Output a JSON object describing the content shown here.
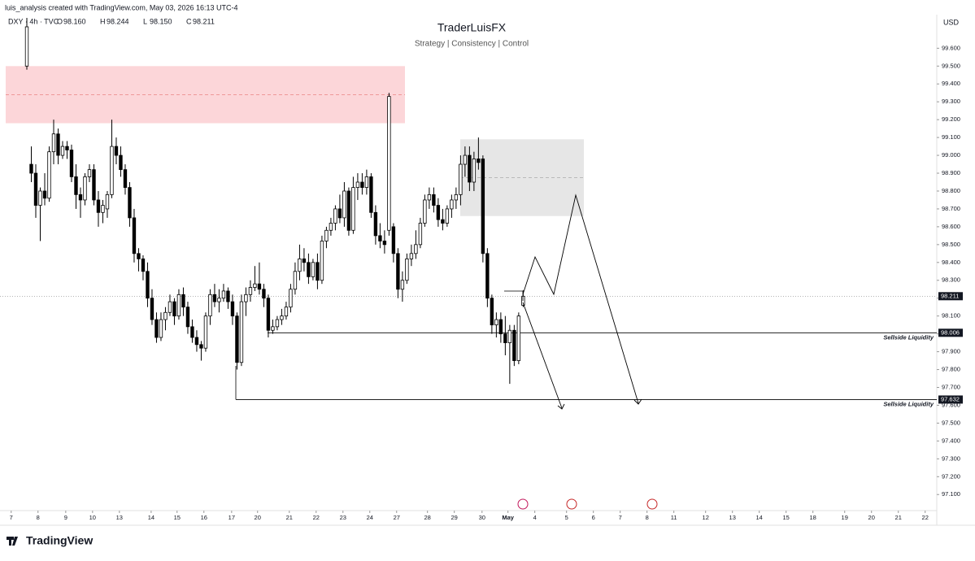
{
  "chart_data": {
    "type": "candlestick",
    "credit": "luis_analysis created with TradingView.com, May 03, 2026 16:13 UTC-4",
    "symbol": "DXY · 4h · TVC",
    "header_ohlc": [
      {
        "key": "O",
        "value": "98.160"
      },
      {
        "key": "H",
        "value": "98.244"
      },
      {
        "key": "L",
        "value": "98.150"
      },
      {
        "key": "C",
        "value": "98.211"
      }
    ],
    "title": "TraderLuisFX",
    "subtitle": "Strategy | Consistency | Control",
    "currency": "USD",
    "brand": "TradingView",
    "ylim": [
      97.01,
      99.77
    ],
    "yticks": [
      {
        "value": 97.1,
        "label": "97.100"
      },
      {
        "value": 97.2,
        "label": "97.200"
      },
      {
        "value": 97.3,
        "label": "97.300"
      },
      {
        "value": 97.4,
        "label": "97.400"
      },
      {
        "value": 97.5,
        "label": "97.500"
      },
      {
        "value": 97.6,
        "label": "97.600"
      },
      {
        "value": 97.7,
        "label": "97.700"
      },
      {
        "value": 97.8,
        "label": "97.800"
      },
      {
        "value": 97.9,
        "label": "97.900"
      },
      {
        "value": 98.0,
        "label": "98.000"
      },
      {
        "value": 98.1,
        "label": "98.100"
      },
      {
        "value": 98.2,
        "label": "98.200"
      },
      {
        "value": 98.3,
        "label": "98.300"
      },
      {
        "value": 98.4,
        "label": "98.400"
      },
      {
        "value": 98.5,
        "label": "98.500"
      },
      {
        "value": 98.6,
        "label": "98.600"
      },
      {
        "value": 98.7,
        "label": "98.700"
      },
      {
        "value": 98.8,
        "label": "98.800"
      },
      {
        "value": 98.9,
        "label": "98.900"
      },
      {
        "value": 99.0,
        "label": "99.000"
      },
      {
        "value": 99.1,
        "label": "99.100"
      },
      {
        "value": 99.2,
        "label": "99.200"
      },
      {
        "value": 99.3,
        "label": "99.300"
      },
      {
        "value": 99.4,
        "label": "99.400"
      },
      {
        "value": 99.5,
        "label": "99.500"
      },
      {
        "value": 99.6,
        "label": "99.600"
      }
    ],
    "xlim": [
      -6,
      203.5
    ],
    "xticks": [
      {
        "value": -3.5,
        "label": "7"
      },
      {
        "value": 2.5,
        "label": "8"
      },
      {
        "value": 8.7,
        "label": "9"
      },
      {
        "value": 14.7,
        "label": "10"
      },
      {
        "value": 20.7,
        "label": "13"
      },
      {
        "value": 27.8,
        "label": "14"
      },
      {
        "value": 33.6,
        "label": "15"
      },
      {
        "value": 39.6,
        "label": "16"
      },
      {
        "value": 45.8,
        "label": "17"
      },
      {
        "value": 51.6,
        "label": "20"
      },
      {
        "value": 58.7,
        "label": "21"
      },
      {
        "value": 64.7,
        "label": "22"
      },
      {
        "value": 70.7,
        "label": "23"
      },
      {
        "value": 76.7,
        "label": "24"
      },
      {
        "value": 82.7,
        "label": "27"
      },
      {
        "value": 89.6,
        "label": "28"
      },
      {
        "value": 95.6,
        "label": "29"
      },
      {
        "value": 101.8,
        "label": "30"
      },
      {
        "value": 107.6,
        "label": "May"
      },
      {
        "value": 113.6,
        "label": "4"
      },
      {
        "value": 120.7,
        "label": "5"
      },
      {
        "value": 126.7,
        "label": "6"
      },
      {
        "value": 132.7,
        "label": "7"
      },
      {
        "value": 138.7,
        "label": "8"
      },
      {
        "value": 144.7,
        "label": "11"
      },
      {
        "value": 151.8,
        "label": "12"
      },
      {
        "value": 157.8,
        "label": "13"
      },
      {
        "value": 163.8,
        "label": "14"
      },
      {
        "value": 169.8,
        "label": "15"
      },
      {
        "value": 175.8,
        "label": "18"
      },
      {
        "value": 182.9,
        "label": "19"
      },
      {
        "value": 188.9,
        "label": "20"
      },
      {
        "value": 194.9,
        "label": "21"
      },
      {
        "value": 200.9,
        "label": "22"
      }
    ],
    "bull_color": "#ffffff",
    "bear_color": "#000000",
    "ohlc": [
      [
        99.5,
        99.77,
        99.48,
        99.72
      ],
      [
        98.95,
        99.05,
        98.85,
        98.9
      ],
      [
        98.9,
        98.95,
        98.65,
        98.72
      ],
      [
        98.72,
        98.82,
        98.52,
        98.8
      ],
      [
        98.8,
        98.9,
        98.72,
        98.76
      ],
      [
        98.76,
        99.05,
        98.74,
        99.02
      ],
      [
        99.02,
        99.2,
        98.95,
        99.12
      ],
      [
        99.12,
        99.15,
        98.95,
        99.0
      ],
      [
        99.0,
        99.08,
        98.98,
        99.05
      ],
      [
        99.05,
        99.08,
        98.98,
        99.03
      ],
      [
        99.03,
        99.06,
        98.85,
        98.88
      ],
      [
        98.88,
        98.95,
        98.7,
        98.78
      ],
      [
        98.78,
        98.82,
        98.65,
        98.75
      ],
      [
        98.75,
        98.9,
        98.72,
        98.88
      ],
      [
        98.88,
        98.95,
        98.85,
        98.92
      ],
      [
        98.92,
        98.95,
        98.72,
        98.75
      ],
      [
        98.75,
        98.8,
        98.6,
        98.68
      ],
      [
        98.68,
        98.75,
        98.62,
        98.72
      ],
      [
        98.7,
        98.8,
        98.65,
        98.78
      ],
      [
        98.78,
        99.2,
        98.76,
        99.05
      ],
      [
        99.05,
        99.1,
        98.95,
        99.0
      ],
      [
        99.0,
        99.05,
        98.88,
        98.92
      ],
      [
        98.92,
        98.95,
        98.78,
        98.82
      ],
      [
        98.82,
        98.85,
        98.6,
        98.65
      ],
      [
        98.65,
        98.7,
        98.4,
        98.45
      ],
      [
        98.45,
        98.48,
        98.35,
        98.42
      ],
      [
        98.42,
        98.44,
        98.3,
        98.35
      ],
      [
        98.35,
        98.4,
        98.15,
        98.2
      ],
      [
        98.2,
        98.25,
        98.05,
        98.08
      ],
      [
        98.08,
        98.12,
        97.95,
        97.98
      ],
      [
        97.98,
        98.12,
        97.96,
        98.08
      ],
      [
        98.08,
        98.15,
        98.02,
        98.12
      ],
      [
        98.12,
        98.22,
        98.1,
        98.18
      ],
      [
        98.18,
        98.2,
        98.05,
        98.1
      ],
      [
        98.1,
        98.25,
        98.08,
        98.22
      ],
      [
        98.22,
        98.26,
        98.1,
        98.15
      ],
      [
        98.15,
        98.18,
        98.0,
        98.04
      ],
      [
        98.04,
        98.08,
        97.95,
        97.98
      ],
      [
        97.98,
        98.02,
        97.9,
        97.94
      ],
      [
        97.94,
        97.96,
        97.85,
        97.92
      ],
      [
        97.92,
        98.12,
        97.9,
        98.1
      ],
      [
        98.1,
        98.25,
        98.05,
        98.22
      ],
      [
        98.22,
        98.28,
        98.15,
        98.18
      ],
      [
        98.18,
        98.25,
        98.12,
        98.2
      ],
      [
        98.2,
        98.28,
        98.18,
        98.24
      ],
      [
        98.24,
        98.26,
        98.14,
        98.18
      ],
      [
        98.18,
        98.22,
        98.05,
        98.1
      ],
      [
        98.1,
        98.12,
        97.8,
        97.84
      ],
      [
        97.84,
        98.22,
        97.82,
        98.18
      ],
      [
        98.18,
        98.26,
        98.1,
        98.22
      ],
      [
        98.22,
        98.3,
        98.18,
        98.26
      ],
      [
        98.26,
        98.38,
        98.24,
        98.28
      ],
      [
        98.28,
        98.4,
        98.22,
        98.25
      ],
      [
        98.25,
        98.28,
        98.15,
        98.2
      ],
      [
        98.2,
        98.22,
        97.98,
        98.02
      ],
      [
        98.02,
        98.08,
        98.0,
        98.04
      ],
      [
        98.04,
        98.1,
        98.02,
        98.08
      ],
      [
        98.08,
        98.14,
        98.05,
        98.1
      ],
      [
        98.1,
        98.18,
        98.08,
        98.15
      ],
      [
        98.15,
        98.28,
        98.12,
        98.25
      ],
      [
        98.25,
        98.4,
        98.22,
        98.35
      ],
      [
        98.35,
        98.5,
        98.3,
        98.42
      ],
      [
        98.42,
        98.48,
        98.35,
        98.4
      ],
      [
        98.4,
        98.45,
        98.28,
        98.32
      ],
      [
        98.32,
        98.42,
        98.3,
        98.4
      ],
      [
        98.4,
        98.45,
        98.25,
        98.3
      ],
      [
        98.3,
        98.55,
        98.28,
        98.52
      ],
      [
        98.52,
        98.6,
        98.48,
        98.58
      ],
      [
        98.58,
        98.65,
        98.55,
        98.62
      ],
      [
        98.62,
        98.72,
        98.58,
        98.7
      ],
      [
        98.7,
        98.78,
        98.62,
        98.65
      ],
      [
        98.65,
        98.85,
        98.6,
        98.8
      ],
      [
        98.8,
        98.82,
        98.55,
        98.58
      ],
      [
        98.58,
        98.88,
        98.56,
        98.82
      ],
      [
        98.82,
        98.9,
        98.75,
        98.85
      ],
      [
        98.85,
        98.9,
        98.78,
        98.82
      ],
      [
        98.82,
        98.92,
        98.78,
        98.88
      ],
      [
        98.88,
        98.9,
        98.65,
        98.68
      ],
      [
        98.68,
        98.72,
        98.5,
        98.55
      ],
      [
        98.55,
        98.62,
        98.48,
        98.52
      ],
      [
        98.52,
        98.58,
        98.45,
        98.5
      ],
      [
        98.58,
        99.35,
        98.55,
        99.33
      ],
      [
        98.6,
        98.62,
        98.4,
        98.45
      ],
      [
        98.45,
        98.48,
        98.2,
        98.25
      ],
      [
        98.25,
        98.35,
        98.18,
        98.3
      ],
      [
        98.3,
        98.45,
        98.28,
        98.42
      ],
      [
        98.42,
        98.5,
        98.38,
        98.45
      ],
      [
        98.45,
        98.58,
        98.42,
        98.5
      ],
      [
        98.5,
        98.65,
        98.48,
        98.62
      ],
      [
        98.62,
        98.78,
        98.6,
        98.75
      ],
      [
        98.75,
        98.82,
        98.7,
        98.78
      ],
      [
        98.78,
        98.82,
        98.68,
        98.72
      ],
      [
        98.72,
        98.76,
        98.6,
        98.64
      ],
      [
        98.64,
        98.7,
        98.58,
        98.62
      ],
      [
        98.62,
        98.72,
        98.6,
        98.7
      ],
      [
        98.7,
        98.78,
        98.65,
        98.75
      ],
      [
        98.75,
        98.82,
        98.7,
        98.78
      ],
      [
        98.78,
        99.0,
        98.72,
        98.95
      ],
      [
        98.95,
        99.05,
        98.88,
        99.0
      ],
      [
        99.0,
        99.05,
        98.8,
        98.85
      ],
      [
        98.85,
        99.02,
        98.8,
        98.98
      ],
      [
        98.98,
        99.1,
        98.92,
        98.96
      ],
      [
        98.98,
        99.0,
        98.4,
        98.45
      ],
      [
        98.45,
        98.48,
        98.15,
        98.2
      ],
      [
        98.2,
        98.22,
        98.0,
        98.05
      ],
      [
        98.05,
        98.12,
        97.98,
        98.08
      ],
      [
        98.08,
        98.12,
        97.95,
        98.0
      ],
      [
        98.0,
        98.1,
        97.88,
        97.95
      ],
      [
        97.95,
        98.05,
        97.72,
        98.02
      ],
      [
        98.02,
        98.05,
        97.82,
        97.85
      ],
      [
        97.85,
        98.12,
        97.83,
        98.1
      ],
      [
        98.16,
        98.244,
        98.15,
        98.211
      ]
    ],
    "zones": [
      {
        "top": 99.5,
        "bottom": 99.18,
        "color": "#fcd6d9"
      },
      {
        "top": 99.09,
        "bottom": 98.66,
        "color": "#e6e6e6"
      }
    ],
    "current_price": 98.211,
    "levels": [
      {
        "value": 98.006,
        "label": "Sellside Liquidity"
      },
      {
        "value": 97.632,
        "label": "Sellside Liquidity"
      }
    ]
  }
}
